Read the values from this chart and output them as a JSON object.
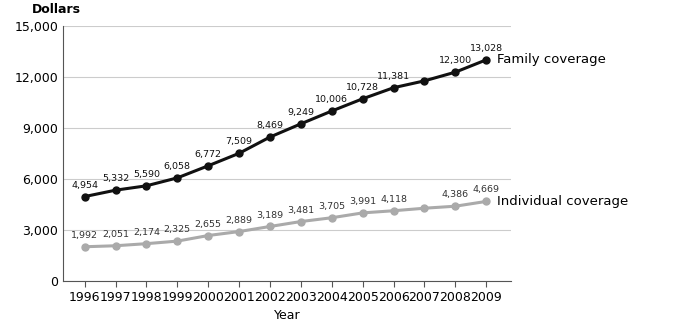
{
  "years": [
    1996,
    1997,
    1998,
    1999,
    2000,
    2001,
    2002,
    2003,
    2004,
    2005,
    2006,
    2007,
    2008,
    2009
  ],
  "family_values": [
    4954,
    5332,
    5590,
    6058,
    6772,
    7509,
    8469,
    9249,
    10006,
    10728,
    11381,
    11786,
    12300,
    13028
  ],
  "individual_values": [
    1992,
    2051,
    2174,
    2325,
    2655,
    2889,
    3189,
    3481,
    3705,
    3991,
    4118,
    4267,
    4386,
    4669
  ],
  "family_labels": [
    "4,954",
    "5,332",
    "5,590",
    "6,058",
    "6,772",
    "7,509",
    "8,469",
    "9,249",
    "10,006",
    "10,728",
    "11,381",
    "",
    "12,300",
    "13,028"
  ],
  "individual_labels": [
    "1,992",
    "2,051",
    "2,174",
    "2,325",
    "2,655",
    "2,889",
    "3,189",
    "3,481",
    "3,705",
    "3,991",
    "4,118",
    "",
    "4,386",
    "4,669"
  ],
  "family_color": "#111111",
  "individual_color": "#aaaaaa",
  "ylabel": "Dollars",
  "xlabel": "Year",
  "ylim": [
    0,
    15000
  ],
  "yticks": [
    0,
    3000,
    6000,
    9000,
    12000,
    15000
  ],
  "family_label": "Family coverage",
  "individual_label": "Individual coverage",
  "marker": "o",
  "markersize": 5,
  "linewidth": 2.2,
  "data_fontsize": 6.8,
  "axis_fontsize": 9,
  "series_label_fontsize": 9.5
}
